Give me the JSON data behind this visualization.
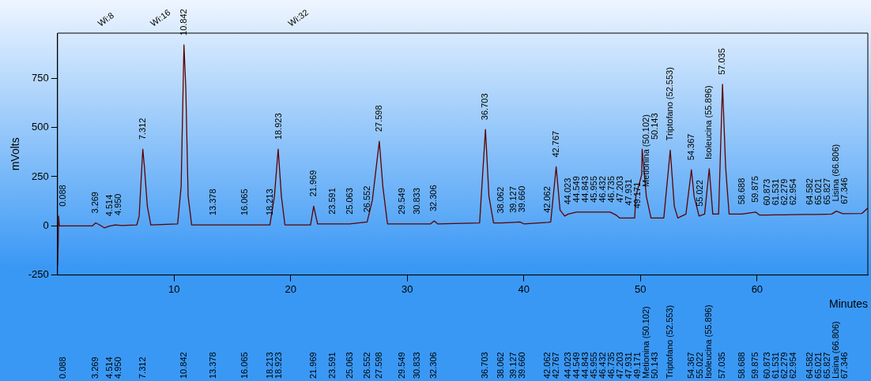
{
  "chart_data": {
    "type": "line",
    "xlabel": "Minutes",
    "ylabel": "mVolts",
    "color": "#5c0000",
    "marker": "none",
    "grid": false,
    "legend": false,
    "xlim": [
      0,
      69.5
    ],
    "ylim": [
      -250,
      980
    ],
    "xticks": [
      10,
      20,
      30,
      40,
      50,
      60
    ],
    "yticks": [
      -250,
      0,
      250,
      500,
      750
    ],
    "x": [
      0,
      0.05,
      0.088,
      0.15,
      3,
      3.269,
      3.6,
      4,
      4.514,
      4.95,
      5.5,
      6.8,
      7,
      7.312,
      7.45,
      7.7,
      8,
      10.3,
      10.6,
      10.842,
      11,
      11.2,
      11.5,
      13.378,
      16.065,
      18.213,
      18.6,
      18.923,
      19.2,
      19.5,
      21.7,
      21.969,
      22.3,
      23.591,
      25.063,
      26.552,
      27,
      27.598,
      27.9,
      28.3,
      29.549,
      30.833,
      32,
      32.306,
      32.6,
      36.2,
      36.703,
      37,
      37.4,
      38.062,
      39.127,
      39.66,
      40,
      42.062,
      42.3,
      42.767,
      43.1,
      43.5,
      43.8,
      44.5,
      45,
      45.9,
      46.4,
      46.8,
      47.4,
      47.9,
      48.2,
      49.171,
      49.5,
      49.6,
      50.102,
      50.143,
      50.5,
      50.9,
      52,
      52.553,
      52.9,
      53.2,
      53.9,
      54.367,
      54.6,
      55.022,
      55.5,
      55.896,
      56.2,
      56.7,
      57.035,
      57.3,
      57.6,
      58.688,
      59.875,
      60.2,
      60.873,
      61.531,
      62.279,
      62.954,
      64.582,
      65.021,
      65.827,
      66.4,
      66.806,
      67.346,
      69,
      69.5
    ],
    "values": [
      -200,
      -100,
      50,
      0,
      0,
      15,
      5,
      -10,
      0,
      5,
      2,
      5,
      50,
      390,
      300,
      100,
      5,
      10,
      200,
      920,
      700,
      150,
      5,
      5,
      5,
      5,
      150,
      390,
      150,
      5,
      5,
      100,
      10,
      10,
      10,
      20,
      130,
      430,
      200,
      10,
      10,
      10,
      10,
      25,
      10,
      15,
      490,
      150,
      15,
      15,
      18,
      20,
      10,
      18,
      20,
      300,
      80,
      50,
      60,
      70,
      70,
      70,
      70,
      70,
      70,
      55,
      40,
      40,
      40,
      150,
      260,
      390,
      150,
      40,
      40,
      385,
      100,
      40,
      60,
      285,
      150,
      50,
      60,
      290,
      60,
      60,
      720,
      300,
      60,
      60,
      70,
      55,
      55,
      56,
      56,
      57,
      58,
      58,
      59,
      60,
      75,
      62,
      63,
      90
    ],
    "annotations": [
      "Wi:8",
      "Wi:16",
      "Wi:32",
      {
        "text": "0.088",
        "x": 0.088,
        "y": 50
      },
      {
        "text": "3.269",
        "x": 3.269,
        "y": 15
      },
      {
        "text": "4.514",
        "x": 4.514,
        "y": 0
      },
      {
        "text": "4.950",
        "x": 4.95,
        "y": 5
      },
      {
        "text": "7.312",
        "x": 7.312,
        "y": 390
      },
      {
        "text": "10.842",
        "x": 10.842,
        "y": 920
      },
      {
        "text": "13.378",
        "x": 13.378,
        "y": 5
      },
      {
        "text": "16.065",
        "x": 16.065,
        "y": 5
      },
      {
        "text": "18.213",
        "x": 18.213,
        "y": 5
      },
      {
        "text": "18.923",
        "x": 18.923,
        "y": 390
      },
      {
        "text": "21.969",
        "x": 21.969,
        "y": 100
      },
      {
        "text": "23.591",
        "x": 23.591,
        "y": 10
      },
      {
        "text": "25.063",
        "x": 25.063,
        "y": 10
      },
      {
        "text": "26.552",
        "x": 26.552,
        "y": 20
      },
      {
        "text": "27.598",
        "x": 27.598,
        "y": 430
      },
      {
        "text": "29.549",
        "x": 29.549,
        "y": 10
      },
      {
        "text": "30.833",
        "x": 30.833,
        "y": 10
      },
      {
        "text": "32.306",
        "x": 32.306,
        "y": 25
      },
      {
        "text": "36.703",
        "x": 36.703,
        "y": 490
      },
      {
        "text": "38.062",
        "x": 38.062,
        "y": 15
      },
      {
        "text": "39.127",
        "x": 39.127,
        "y": 18
      },
      {
        "text": "39.660",
        "x": 39.66,
        "y": 20
      },
      {
        "text": "42.062",
        "x": 42.062,
        "y": 18
      },
      {
        "text": "42.767",
        "x": 42.767,
        "y": 300
      },
      {
        "text": "44.023",
        "x": 43.8,
        "y": 60
      },
      {
        "text": "44.549",
        "x": 44.5,
        "y": 70
      },
      {
        "text": "44.843",
        "x": 45,
        "y": 70
      },
      {
        "text": "45.955",
        "x": 45.9,
        "y": 70
      },
      {
        "text": "46.432",
        "x": 46.4,
        "y": 70
      },
      {
        "text": "46.735",
        "x": 46.8,
        "y": 70
      },
      {
        "text": "47.203",
        "x": 47.4,
        "y": 70
      },
      {
        "text": "47.931",
        "x": 47.9,
        "y": 55
      },
      {
        "text": "49.171",
        "x": 49.171,
        "y": 40
      },
      {
        "text": "Metionina (50.102)",
        "x": 49.6,
        "y": 150
      },
      {
        "text": "50.143",
        "x": 50.143,
        "y": 390
      },
      {
        "text": "Triptofano (52.553)",
        "x": 52.553,
        "y": 385
      },
      {
        "text": "54.367",
        "x": 54.367,
        "y": 285
      },
      {
        "text": "55.022",
        "x": 55.022,
        "y": 50
      },
      {
        "text": "Isoleucina (55.896)",
        "x": 55.896,
        "y": 290
      },
      {
        "text": "57.035",
        "x": 57.035,
        "y": 720
      },
      {
        "text": "58.688",
        "x": 58.688,
        "y": 60
      },
      {
        "text": "59.875",
        "x": 59.875,
        "y": 70
      },
      {
        "text": "60.873",
        "x": 60.873,
        "y": 55
      },
      {
        "text": "61.531",
        "x": 61.531,
        "y": 56
      },
      {
        "text": "62.279",
        "x": 62.279,
        "y": 56
      },
      {
        "text": "62.954",
        "x": 62.954,
        "y": 57
      },
      {
        "text": "64.582",
        "x": 64.582,
        "y": 58
      },
      {
        "text": "65.021",
        "x": 65.021,
        "y": 58
      },
      {
        "text": "65.827",
        "x": 65.827,
        "y": 59
      },
      {
        "text": "Lisina (66.806)",
        "x": 66.806,
        "y": 75
      },
      {
        "text": "67.346",
        "x": 67.346,
        "y": 62
      }
    ]
  }
}
